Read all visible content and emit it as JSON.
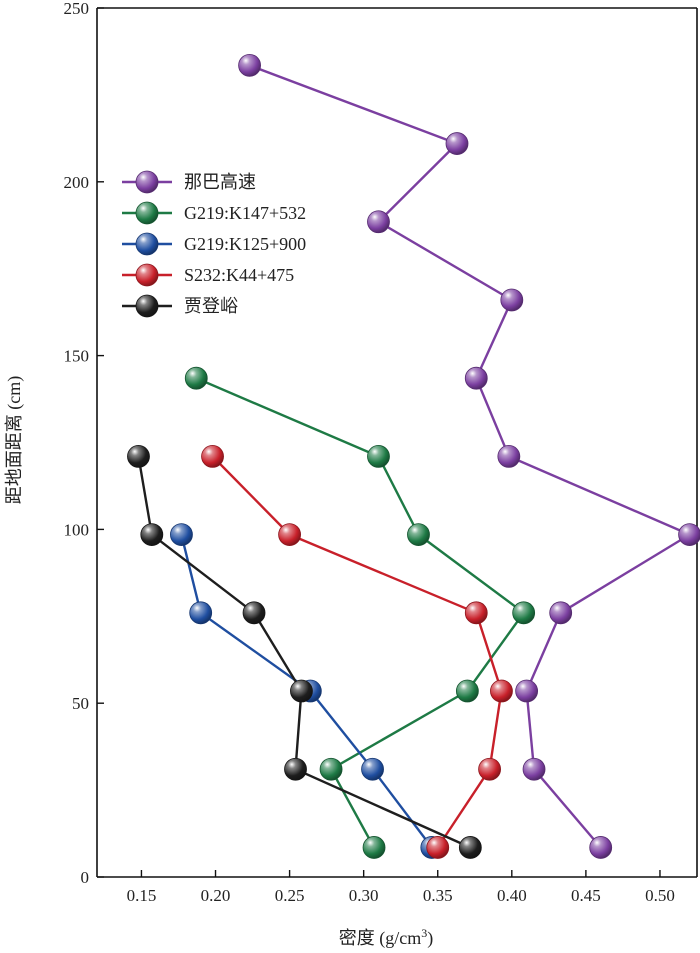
{
  "chart_data": {
    "type": "line",
    "xlabel": "密度 (g/cm³)",
    "ylabel": "距地面距离 (cm)",
    "xlim": [
      0.12,
      0.525
    ],
    "ylim": [
      0,
      250
    ],
    "x_ticks": [
      0.15,
      0.2,
      0.25,
      0.3,
      0.35,
      0.4,
      0.45,
      0.5
    ],
    "x_tick_labels": [
      "0.15",
      "0.20",
      "0.25",
      "0.30",
      "0.35",
      "0.40",
      "0.45",
      "0.50"
    ],
    "y_ticks": [
      0,
      50,
      100,
      150,
      200,
      250
    ],
    "y_tick_labels": [
      "0",
      "50",
      "100",
      "150",
      "200",
      "250"
    ],
    "grid": false,
    "legend_position": "upper-left",
    "series": [
      {
        "name": "那巴高速",
        "color": "#7b3fa0",
        "points": [
          [
            0.223,
            233.5
          ],
          [
            0.363,
            211
          ],
          [
            0.31,
            188.5
          ],
          [
            0.4,
            166
          ],
          [
            0.376,
            143.5
          ],
          [
            0.398,
            121
          ],
          [
            0.52,
            98.5
          ],
          [
            0.433,
            76
          ],
          [
            0.41,
            53.5
          ],
          [
            0.415,
            31
          ],
          [
            0.46,
            8.5
          ]
        ]
      },
      {
        "name": "G219:K147+532",
        "color": "#1e7a45",
        "points": [
          [
            0.187,
            143.5
          ],
          [
            0.31,
            121
          ],
          [
            0.337,
            98.5
          ],
          [
            0.408,
            76
          ],
          [
            0.37,
            53.5
          ],
          [
            0.278,
            31
          ],
          [
            0.307,
            8.5
          ]
        ]
      },
      {
        "name": "G219:K125+900",
        "color": "#1f4ea0",
        "points": [
          [
            0.177,
            98.5
          ],
          [
            0.19,
            76
          ],
          [
            0.264,
            53.5
          ],
          [
            0.306,
            31
          ],
          [
            0.346,
            8.5
          ]
        ]
      },
      {
        "name": "S232:K44+475",
        "color": "#c8202a",
        "points": [
          [
            0.198,
            121
          ],
          [
            0.25,
            98.5
          ],
          [
            0.376,
            76
          ],
          [
            0.393,
            53.5
          ],
          [
            0.385,
            31
          ],
          [
            0.35,
            8.5
          ]
        ]
      },
      {
        "name": "贾登峪",
        "color": "#1e1e1e",
        "points": [
          [
            0.148,
            121
          ],
          [
            0.157,
            98.5
          ],
          [
            0.226,
            76
          ],
          [
            0.258,
            53.5
          ],
          [
            0.254,
            31
          ],
          [
            0.372,
            8.5
          ]
        ]
      }
    ]
  }
}
